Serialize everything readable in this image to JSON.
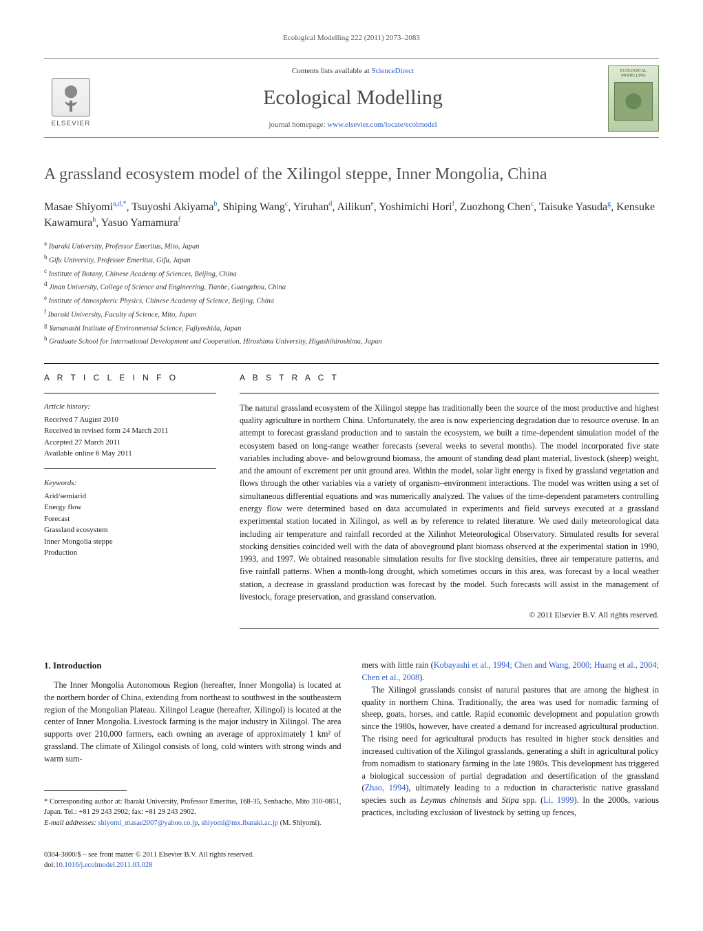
{
  "running_head": "Ecological Modelling 222 (2011) 2073–2083",
  "masthead": {
    "contents_prefix": "Contents lists available at ",
    "contents_link": "ScienceDirect",
    "journal_title": "Ecological Modelling",
    "homepage_prefix": "journal homepage: ",
    "homepage_link": "www.elsevier.com/locate/ecolmodel",
    "publisher": "ELSEVIER",
    "cover_title": "ECOLOGICAL MODELLING"
  },
  "title": "A grassland ecosystem model of the Xilingol steppe, Inner Mongolia, China",
  "authors_html": "Masae Shiyomi<sup>a,d,*</sup>, Tsuyoshi Akiyama<sup>b</sup>, Shiping Wang<sup>c</sup>, Yiruhan<sup>d</sup>, Ailikun<sup>e</sup>, Yoshimichi Hori<sup>f</sup>, Zuozhong Chen<sup>c</sup>, Taisuke Yasuda<sup>g</sup>, Kensuke Kawamura<sup>h</sup>, Yasuo Yamamura<sup>f</sup>",
  "affiliations": [
    {
      "sup": "a",
      "text": "Ibaraki University, Professor Emeritus, Mito, Japan"
    },
    {
      "sup": "b",
      "text": "Gifu University, Professor Emeritus, Gifu, Japan"
    },
    {
      "sup": "c",
      "text": "Institute of Botany, Chinese Academy of Sciences, Beijing, China"
    },
    {
      "sup": "d",
      "text": "Jinan University, College of Science and Engineering, Tianhe, Guangzhou, China"
    },
    {
      "sup": "e",
      "text": "Institute of Atmospheric Physics, Chinese Academy of Science, Beijing, China"
    },
    {
      "sup": "f",
      "text": "Ibaraki University, Faculty of Science, Mito, Japan"
    },
    {
      "sup": "g",
      "text": "Yamanashi Institute of Environmental Science, Fujiyoshida, Japan"
    },
    {
      "sup": "h",
      "text": "Graduate School for International Development and Cooperation, Hiroshima University, Higashihiroshima, Japan"
    }
  ],
  "article_info_heading": "A R T I C L E   I N F O",
  "abstract_heading": "A B S T R A C T",
  "history_label": "Article history:",
  "history": [
    "Received 7 August 2010",
    "Received in revised form 24 March 2011",
    "Accepted 27 March 2011",
    "Available online 6 May 2011"
  ],
  "keywords_label": "Keywords:",
  "keywords": [
    "Arid/semiarid",
    "Energy flow",
    "Forecast",
    "Grassland ecosystem",
    "Inner Mongolia steppe",
    "Production"
  ],
  "abstract": "The natural grassland ecosystem of the Xilingol steppe has traditionally been the source of the most productive and highest quality agriculture in northern China. Unfortunately, the area is now experiencing degradation due to resource overuse. In an attempt to forecast grassland production and to sustain the ecosystem, we built a time-dependent simulation model of the ecosystem based on long-range weather forecasts (several weeks to several months). The model incorporated five state variables including above- and belowground biomass, the amount of standing dead plant material, livestock (sheep) weight, and the amount of excrement per unit ground area. Within the model, solar light energy is fixed by grassland vegetation and flows through the other variables via a variety of organism–environment interactions. The model was written using a set of simultaneous differential equations and was numerically analyzed. The values of the time-dependent parameters controlling energy flow were determined based on data accumulated in experiments and field surveys executed at a grassland experimental station located in Xilingol, as well as by reference to related literature. We used daily meteorological data including air temperature and rainfall recorded at the Xilinhot Meteorological Observatory. Simulated results for several stocking densities coincided well with the data of aboveground plant biomass observed at the experimental station in 1990, 1993, and 1997. We obtained reasonable simulation results for five stocking densities, three air temperature patterns, and five rainfall patterns. When a month-long drought, which sometimes occurs in this area, was forecast by a local weather station, a decrease in grassland production was forecast by the model. Such forecasts will assist in the management of livestock, forage preservation, and grassland conservation.",
  "copyright": "© 2011 Elsevier B.V. All rights reserved.",
  "section_heading": "1.  Introduction",
  "intro_col1_p1": "The Inner Mongolia Autonomous Region (hereafter, Inner Mongolia) is located at the northern border of China, extending from northeast to southwest in the southeastern region of the Mongolian Plateau. Xilingol League (hereafter, Xilingol) is located at the center of Inner Mongolia. Livestock farming is the major industry in Xilingol. The area supports over 210,000 farmers, each owning an average of approximately 1 km² of grassland. The climate of Xilingol consists of long, cold winters with strong winds and warm sum-",
  "intro_col2_p0_pre": "mers with little rain (",
  "intro_col2_p0_link": "Kobayashi et al., 1994; Chen and Wang, 2000; Huang et al., 2004; Chen et al., 2008",
  "intro_col2_p0_post": ").",
  "intro_col2_p1_a": "The Xilingol grasslands consist of natural pastures that are among the highest in quality in northern China. Traditionally, the area was used for nomadic farming of sheep, goats, horses, and cattle. Rapid economic development and population growth since the 1980s, however, have created a demand for increased agricultural production. The rising need for agricultural products has resulted in higher stock densities and increased cultivation of the Xilingol grasslands, generating a shift in agricultural policy from nomadism to stationary farming in the late 1980s. This development has triggered a biological succession of partial degradation and desertification of the grassland (",
  "intro_col2_link1": "Zhao, 1994",
  "intro_col2_p1_b": "), ultimately leading to a reduction in characteristic native grassland species such as ",
  "intro_col2_em1": "Leymus chinensis",
  "intro_col2_p1_c": " and ",
  "intro_col2_em2": "Stipa",
  "intro_col2_p1_d": " spp. (",
  "intro_col2_link2": "Li, 1999",
  "intro_col2_p1_e": "). In the 2000s, various practices, including exclusion of livestock by setting up fences,",
  "footnote_corr": "* Corresponding author at: Ibaraki University, Professor Emeritus, 168-35, Senbacho, Mito 310-0851, Japan. Tel.: +81 29 243 2902; fax: +81 29 243 2902.",
  "footnote_email_label": "E-mail addresses: ",
  "footnote_email1": "shiyomi_masae2007@yahoo.co.jp",
  "footnote_email_sep": ", ",
  "footnote_email2": "shiyomi@mx.ibaraki.ac.jp",
  "footnote_email_tail": " (M. Shiyomi).",
  "bottom_left_line1": "0304-3800/$ – see front matter © 2011 Elsevier B.V. All rights reserved.",
  "bottom_left_line2_pre": "doi:",
  "bottom_left_line2_link": "10.1016/j.ecolmodel.2011.03.028",
  "colors": {
    "link": "#2a58c9",
    "heading_gray": "#505050",
    "text": "#1a1a1a",
    "rule": "#1a1a1a"
  }
}
